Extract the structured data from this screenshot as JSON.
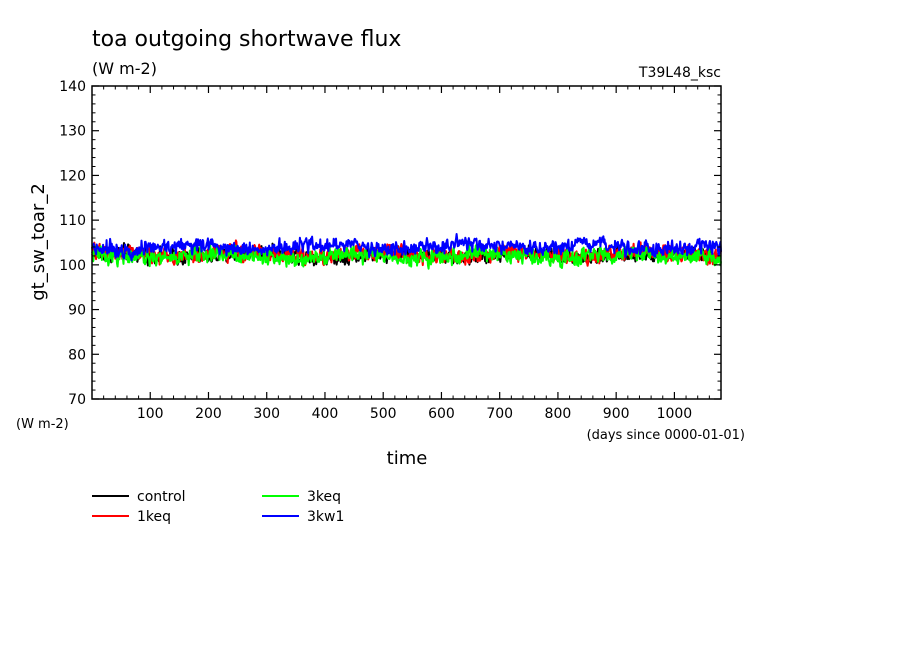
{
  "chart_data": {
    "type": "line",
    "title": "toa outgoing shortwave flux",
    "subtitle": "(W m-2)",
    "run_label": "T39L48_ksc",
    "ylabel": "gt_sw_toar_2",
    "yunit": "(W m-2)",
    "xlabel": "time",
    "xunit": "(days since 0000-01-01)",
    "xlim": [
      0,
      1080
    ],
    "ylim": [
      70,
      140
    ],
    "x_ticks": [
      100,
      200,
      300,
      400,
      500,
      600,
      700,
      800,
      900,
      1000
    ],
    "x_tick_labels": [
      "100",
      "200",
      "300",
      "400",
      "500",
      "600",
      "700",
      "800",
      "900",
      "1000"
    ],
    "y_ticks": [
      70,
      80,
      90,
      100,
      110,
      120,
      130,
      140
    ],
    "y_tick_labels": [
      "70",
      "80",
      "90",
      "100",
      "110",
      "120",
      "130",
      "140"
    ],
    "grid": false,
    "legend_placement": "bottom-left",
    "series": [
      {
        "name": "control",
        "color": "#000000",
        "mean": 102.2,
        "amplitude": 1.4
      },
      {
        "name": "1keq",
        "color": "#ff0000",
        "mean": 102.4,
        "amplitude": 1.5
      },
      {
        "name": "3keq",
        "color": "#00ff00",
        "mean": 102.0,
        "amplitude": 1.5
      },
      {
        "name": "3kw1",
        "color": "#0000ff",
        "mean": 104.0,
        "amplitude": 1.4
      }
    ]
  }
}
